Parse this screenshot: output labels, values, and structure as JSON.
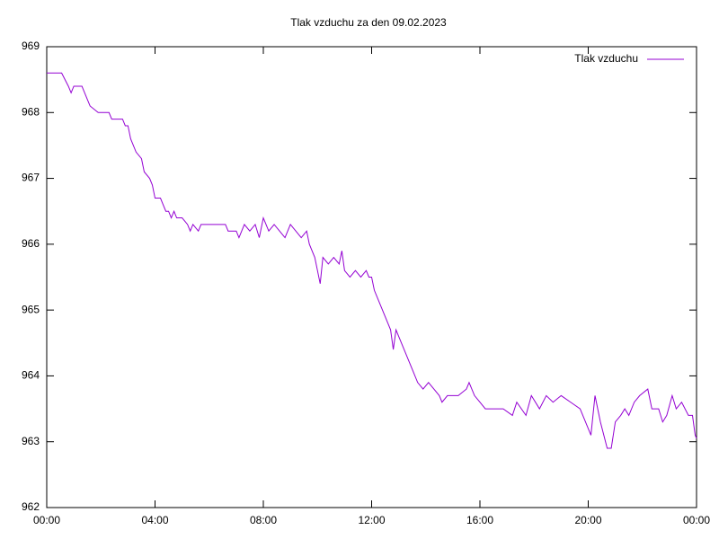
{
  "chart_data": {
    "type": "line",
    "title": "Tlak vzduchu za den 09.02.2023",
    "x": [
      0,
      0.55,
      0.8,
      0.9,
      1.0,
      1.3,
      1.4,
      1.5,
      1.6,
      1.9,
      2.3,
      2.4,
      2.8,
      2.9,
      3.0,
      3.1,
      3.3,
      3.5,
      3.6,
      3.8,
      3.9,
      4.0,
      4.2,
      4.3,
      4.4,
      4.5,
      4.6,
      4.7,
      4.8,
      5.0,
      5.2,
      5.3,
      5.4,
      5.6,
      5.7,
      6.6,
      6.7,
      7.0,
      7.1,
      7.3,
      7.5,
      7.7,
      7.85,
      8.0,
      8.2,
      8.4,
      8.6,
      8.8,
      9.0,
      9.2,
      9.4,
      9.6,
      9.7,
      9.9,
      10.0,
      10.1,
      10.2,
      10.4,
      10.6,
      10.8,
      10.9,
      11.0,
      11.2,
      11.4,
      11.6,
      11.8,
      11.9,
      12.0,
      12.1,
      12.3,
      12.5,
      12.7,
      12.8,
      12.9,
      13.1,
      13.3,
      13.5,
      13.7,
      13.9,
      14.1,
      14.3,
      14.5,
      14.6,
      14.8,
      15.2,
      15.5,
      15.6,
      15.8,
      16.0,
      16.2,
      16.86,
      17.2,
      17.36,
      17.7,
      17.9,
      18.2,
      18.45,
      18.7,
      19.0,
      19.35,
      19.7,
      20.0,
      20.1,
      20.25,
      20.45,
      20.7,
      20.85,
      21.0,
      21.2,
      21.35,
      21.5,
      21.7,
      21.9,
      22.2,
      22.35,
      22.6,
      22.75,
      22.9,
      23.1,
      23.25,
      23.45,
      23.7,
      23.85,
      23.95,
      24.0
    ],
    "series": [
      {
        "name": "Tlak vzduchu",
        "color": "#9400d3",
        "values": [
          968.6,
          968.6,
          968.4,
          968.3,
          968.4,
          968.4,
          968.3,
          968.2,
          968.1,
          968.0,
          968.0,
          967.9,
          967.9,
          967.8,
          967.8,
          967.6,
          967.4,
          967.3,
          967.1,
          967.0,
          966.9,
          966.7,
          966.7,
          966.6,
          966.5,
          966.5,
          966.4,
          966.5,
          966.4,
          966.4,
          966.3,
          966.2,
          966.3,
          966.2,
          966.3,
          966.3,
          966.2,
          966.2,
          966.1,
          966.3,
          966.2,
          966.3,
          966.1,
          966.4,
          966.2,
          966.3,
          966.2,
          966.1,
          966.3,
          966.2,
          966.1,
          966.2,
          966.0,
          965.8,
          965.6,
          965.4,
          965.8,
          965.7,
          965.8,
          965.7,
          965.9,
          965.6,
          965.5,
          965.6,
          965.5,
          965.6,
          965.5,
          965.5,
          965.3,
          965.1,
          964.9,
          964.7,
          964.4,
          964.7,
          964.5,
          964.3,
          964.1,
          963.9,
          963.8,
          963.9,
          963.8,
          963.7,
          963.6,
          963.7,
          963.7,
          963.8,
          963.9,
          963.7,
          963.6,
          963.5,
          963.5,
          963.4,
          963.6,
          963.4,
          963.7,
          963.5,
          963.7,
          963.6,
          963.7,
          963.6,
          963.5,
          963.2,
          963.1,
          963.7,
          963.3,
          962.9,
          962.9,
          963.3,
          963.4,
          963.5,
          963.4,
          963.6,
          963.7,
          963.8,
          963.5,
          963.5,
          963.3,
          963.4,
          963.7,
          963.5,
          963.6,
          963.4,
          963.4,
          963.1,
          963.05
        ]
      }
    ],
    "xlim": [
      0,
      24
    ],
    "ylim": [
      962,
      969
    ],
    "xticks": [
      {
        "value": 0,
        "label": "00:00"
      },
      {
        "value": 4,
        "label": "04:00"
      },
      {
        "value": 8,
        "label": "08:00"
      },
      {
        "value": 12,
        "label": "12:00"
      },
      {
        "value": 16,
        "label": "16:00"
      },
      {
        "value": 20,
        "label": "20:00"
      },
      {
        "value": 24,
        "label": "00:00"
      }
    ],
    "yticks": [
      962,
      963,
      964,
      965,
      966,
      967,
      968,
      969
    ],
    "grid": false,
    "legend": "top-right"
  }
}
